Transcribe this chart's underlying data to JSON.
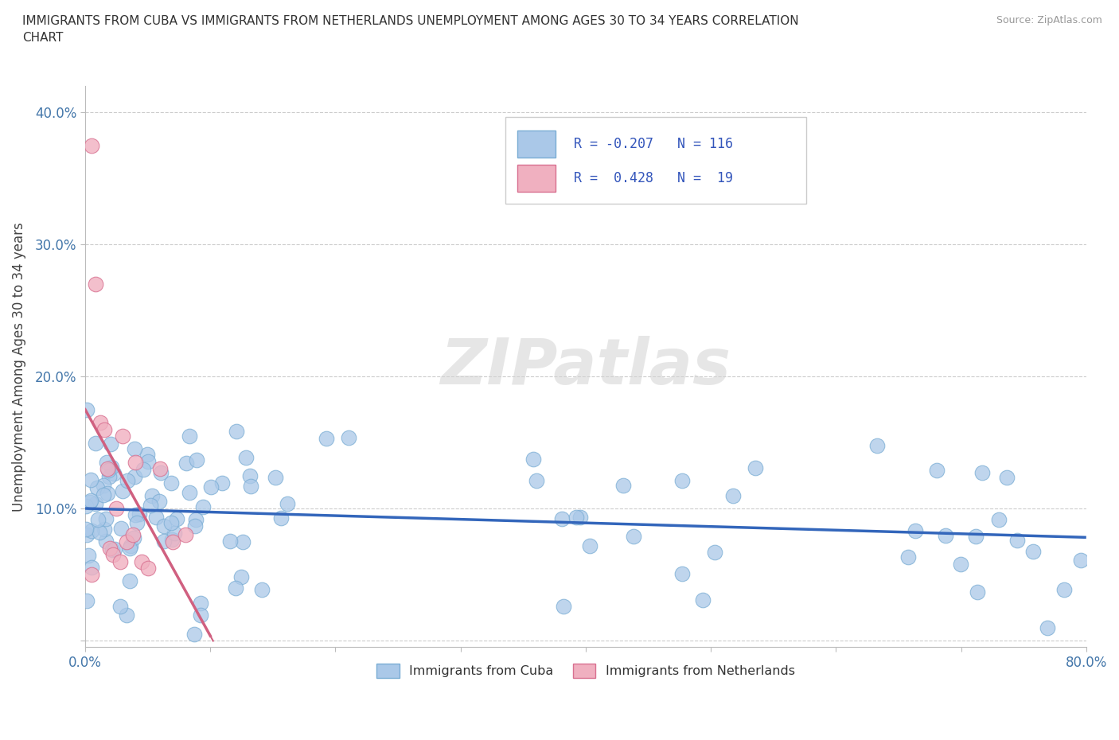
{
  "title": "IMMIGRANTS FROM CUBA VS IMMIGRANTS FROM NETHERLANDS UNEMPLOYMENT AMONG AGES 30 TO 34 YEARS CORRELATION\nCHART",
  "source_text": "Source: ZipAtlas.com",
  "ylabel_text": "Unemployment Among Ages 30 to 34 years",
  "xlim": [
    0.0,
    0.8
  ],
  "ylim": [
    -0.005,
    0.42
  ],
  "cuba_color": "#aac8e8",
  "cuba_edge_color": "#7aadd4",
  "netherlands_color": "#f0b0c0",
  "netherlands_edge_color": "#d87090",
  "trend_cuba_color": "#3366bb",
  "trend_netherlands_color": "#d06080",
  "trend_netherlands_dash": true,
  "r_cuba": -0.207,
  "n_cuba": 116,
  "r_netherlands": 0.428,
  "n_netherlands": 19,
  "legend_label_cuba": "Immigrants from Cuba",
  "legend_label_netherlands": "Immigrants from Netherlands",
  "watermark": "ZIPatlas",
  "grid_color": "#cccccc",
  "background_color": "#ffffff",
  "legend_r_color": "#3355bb",
  "legend_text_color": "#333333"
}
